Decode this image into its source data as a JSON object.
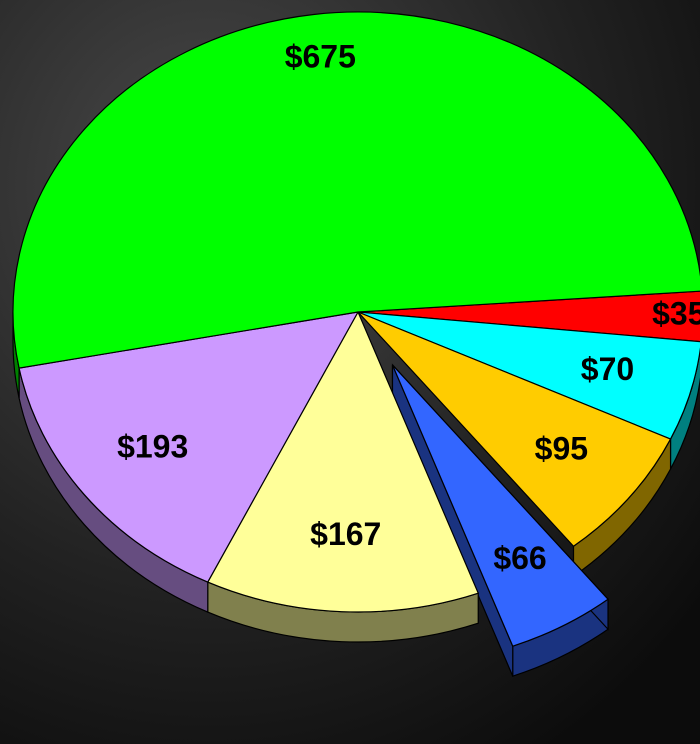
{
  "chart_data": {
    "type": "pie",
    "values": [
      35,
      70,
      95,
      66,
      167,
      193,
      675
    ],
    "value_labels": [
      "$35",
      "$70",
      "$95",
      "$66",
      "$167",
      "$193",
      "$675"
    ],
    "colors": [
      "#ff0000",
      "#00ffff",
      "#ffcc00",
      "#3366ff",
      "#ffff99",
      "#cc99ff",
      "#00ff00"
    ],
    "explode": [
      false,
      false,
      false,
      true,
      false,
      false,
      false
    ],
    "three_d": true
  }
}
